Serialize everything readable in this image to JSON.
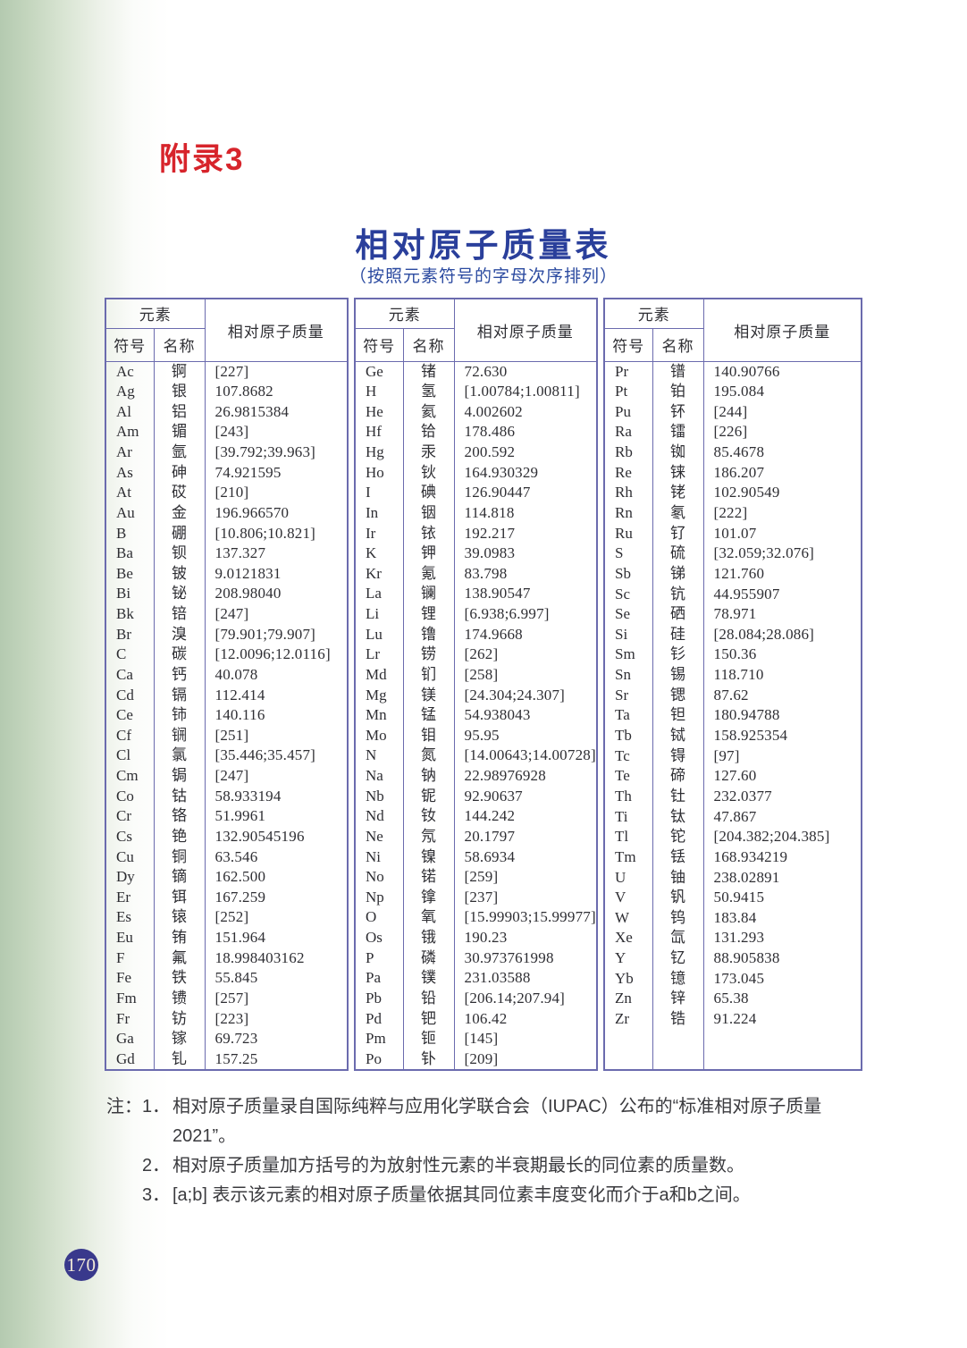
{
  "page": {
    "appendix_label": "附录3",
    "title": "相对原子质量表",
    "subtitle": "（按照元素符号的字母次序排列）",
    "page_number": "170"
  },
  "colors": {
    "table_border": "#6b6bae",
    "appendix_red": "#d7242b",
    "title_blue": "#2a3f9b",
    "page_circle_blue": "#39398c"
  },
  "table": {
    "header": {
      "element": "元素",
      "symbol": "符号",
      "name": "名称",
      "mass": "相对原子质量"
    },
    "groups": [
      {
        "rows": [
          [
            "Ac",
            "锕",
            "[227]"
          ],
          [
            "Ag",
            "银",
            "107.8682"
          ],
          [
            "Al",
            "铝",
            "26.9815384"
          ],
          [
            "Am",
            "镅",
            "[243]"
          ],
          [
            "Ar",
            "氩",
            "[39.792;39.963]"
          ],
          [
            "As",
            "砷",
            "74.921595"
          ],
          [
            "At",
            "砹",
            "[210]"
          ],
          [
            "Au",
            "金",
            "196.966570"
          ],
          [
            "B",
            "硼",
            "[10.806;10.821]"
          ],
          [
            "Ba",
            "钡",
            "137.327"
          ],
          [
            "Be",
            "铍",
            "9.0121831"
          ],
          [
            "Bi",
            "铋",
            "208.98040"
          ],
          [
            "Bk",
            "锫",
            "[247]"
          ],
          [
            "Br",
            "溴",
            "[79.901;79.907]"
          ],
          [
            "C",
            "碳",
            "[12.0096;12.0116]"
          ],
          [
            "Ca",
            "钙",
            "40.078"
          ],
          [
            "Cd",
            "镉",
            "112.414"
          ],
          [
            "Ce",
            "铈",
            "140.116"
          ],
          [
            "Cf",
            "锎",
            "[251]"
          ],
          [
            "Cl",
            "氯",
            "[35.446;35.457]"
          ],
          [
            "Cm",
            "锔",
            "[247]"
          ],
          [
            "Co",
            "钴",
            "58.933194"
          ],
          [
            "Cr",
            "铬",
            "51.9961"
          ],
          [
            "Cs",
            "铯",
            "132.90545196"
          ],
          [
            "Cu",
            "铜",
            "63.546"
          ],
          [
            "Dy",
            "镝",
            "162.500"
          ],
          [
            "Er",
            "铒",
            "167.259"
          ],
          [
            "Es",
            "锿",
            "[252]"
          ],
          [
            "Eu",
            "铕",
            "151.964"
          ],
          [
            "F",
            "氟",
            "18.998403162"
          ],
          [
            "Fe",
            "铁",
            "55.845"
          ],
          [
            "Fm",
            "镄",
            "[257]"
          ],
          [
            "Fr",
            "钫",
            "[223]"
          ],
          [
            "Ga",
            "镓",
            "69.723"
          ],
          [
            "Gd",
            "钆",
            "157.25"
          ]
        ]
      },
      {
        "rows": [
          [
            "Ge",
            "锗",
            "72.630"
          ],
          [
            "H",
            "氢",
            "[1.00784;1.00811]"
          ],
          [
            "He",
            "氦",
            "4.002602"
          ],
          [
            "Hf",
            "铪",
            "178.486"
          ],
          [
            "Hg",
            "汞",
            "200.592"
          ],
          [
            "Ho",
            "钬",
            "164.930329"
          ],
          [
            "I",
            "碘",
            "126.90447"
          ],
          [
            "In",
            "铟",
            "114.818"
          ],
          [
            "Ir",
            "铱",
            "192.217"
          ],
          [
            "K",
            "钾",
            "39.0983"
          ],
          [
            "Kr",
            "氪",
            "83.798"
          ],
          [
            "La",
            "镧",
            "138.90547"
          ],
          [
            "Li",
            "锂",
            "[6.938;6.997]"
          ],
          [
            "Lu",
            "镥",
            "174.9668"
          ],
          [
            "Lr",
            "铹",
            "[262]"
          ],
          [
            "Md",
            "钔",
            "[258]"
          ],
          [
            "Mg",
            "镁",
            "[24.304;24.307]"
          ],
          [
            "Mn",
            "锰",
            "54.938043"
          ],
          [
            "Mo",
            "钼",
            "95.95"
          ],
          [
            "N",
            "氮",
            "[14.00643;14.00728]"
          ],
          [
            "Na",
            "钠",
            "22.98976928"
          ],
          [
            "Nb",
            "铌",
            "92.90637"
          ],
          [
            "Nd",
            "钕",
            "144.242"
          ],
          [
            "Ne",
            "氖",
            "20.1797"
          ],
          [
            "Ni",
            "镍",
            "58.6934"
          ],
          [
            "No",
            "锘",
            "[259]"
          ],
          [
            "Np",
            "镎",
            "[237]"
          ],
          [
            "O",
            "氧",
            "[15.99903;15.99977]"
          ],
          [
            "Os",
            "锇",
            "190.23"
          ],
          [
            "P",
            "磷",
            "30.973761998"
          ],
          [
            "Pa",
            "镤",
            "231.03588"
          ],
          [
            "Pb",
            "铅",
            "[206.14;207.94]"
          ],
          [
            "Pd",
            "钯",
            "106.42"
          ],
          [
            "Pm",
            "钷",
            "[145]"
          ],
          [
            "Po",
            "钋",
            "[209]"
          ]
        ]
      },
      {
        "rows": [
          [
            "Pr",
            "镨",
            "140.90766"
          ],
          [
            "Pt",
            "铂",
            "195.084"
          ],
          [
            "Pu",
            "钚",
            "[244]"
          ],
          [
            "Ra",
            "镭",
            "[226]"
          ],
          [
            "Rb",
            "铷",
            "85.4678"
          ],
          [
            "Re",
            "铼",
            "186.207"
          ],
          [
            "Rh",
            "铑",
            "102.90549"
          ],
          [
            "Rn",
            "氡",
            "[222]"
          ],
          [
            "Ru",
            "钌",
            "101.07"
          ],
          [
            "S",
            "硫",
            "[32.059;32.076]"
          ],
          [
            "Sb",
            "锑",
            "121.760"
          ],
          [
            "Sc",
            "钪",
            "44.955907"
          ],
          [
            "Se",
            "硒",
            "78.971"
          ],
          [
            "Si",
            "硅",
            "[28.084;28.086]"
          ],
          [
            "Sm",
            "钐",
            "150.36"
          ],
          [
            "Sn",
            "锡",
            "118.710"
          ],
          [
            "Sr",
            "锶",
            "87.62"
          ],
          [
            "Ta",
            "钽",
            "180.94788"
          ],
          [
            "Tb",
            "铽",
            "158.925354"
          ],
          [
            "Tc",
            "锝",
            "[97]"
          ],
          [
            "Te",
            "碲",
            "127.60"
          ],
          [
            "Th",
            "钍",
            "232.0377"
          ],
          [
            "Ti",
            "钛",
            "47.867"
          ],
          [
            "Tl",
            "铊",
            "[204.382;204.385]"
          ],
          [
            "Tm",
            "铥",
            "168.934219"
          ],
          [
            "U",
            "铀",
            "238.02891"
          ],
          [
            "V",
            "钒",
            "50.9415"
          ],
          [
            "W",
            "钨",
            "183.84"
          ],
          [
            "Xe",
            "氙",
            "131.293"
          ],
          [
            "Y",
            "钇",
            "88.905838"
          ],
          [
            "Yb",
            "镱",
            "173.045"
          ],
          [
            "Zn",
            "锌",
            "65.38"
          ],
          [
            "Zr",
            "锆",
            "91.224"
          ]
        ]
      }
    ]
  },
  "notes": {
    "label": "注：",
    "items": [
      {
        "num": "1．",
        "text": "相对原子质量录自国际纯粹与应用化学联合会（IUPAC）公布的“标准相对原子质量2021”。"
      },
      {
        "num": "2．",
        "text": "相对原子质量加方括号的为放射性元素的半衰期最长的同位素的质量数。"
      },
      {
        "num": "3．",
        "text": "[a;b] 表示该元素的相对原子质量依据其同位素丰度变化而介于a和b之间。"
      }
    ]
  }
}
